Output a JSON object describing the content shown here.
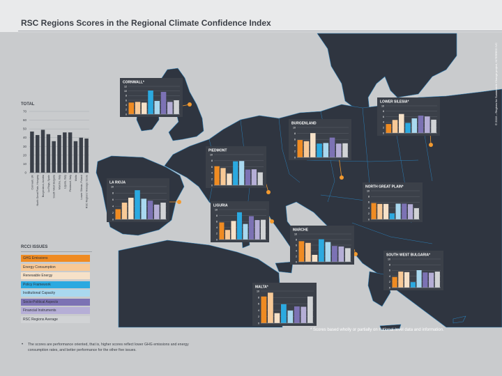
{
  "title": "RSC Regions Scores in the Regional Climate Confidence Index",
  "copyright": "© 2016 – Regions for Sustainable Change project, INTERREG IVC",
  "colors": [
    "#ef8b22",
    "#f8c996",
    "#f6e1c8",
    "#2ba9e0",
    "#a9d8ef",
    "#7c72b4",
    "#b5aed6",
    "#d1d3d5"
  ],
  "legend": {
    "heading": "RCCI ISSUES",
    "items": [
      "GHG Emissions",
      "Energy Consumption",
      "Renewable Energy",
      "Policy Framework",
      "Institutional Capacity",
      "Socio-Political Aspects",
      "Financial Instruments",
      "RSC Regions Average"
    ]
  },
  "footnote": "* Scores based wholly or partially on national-level data and information.",
  "note": "The scores are performance oriented, that is, higher scores reflect lower GHG emissions and energy consumption rates, and better performance for the other five issues.",
  "chart_data": [
    {
      "type": "bar",
      "title": "TOTAL",
      "categories": [
        "Cornwall, UK",
        "North Great Plain, Hungary",
        "Burgenland, Austria",
        "La Rioja, Spain",
        "South West Bulgaria",
        "Marche, Italy",
        "Liguria, Italy",
        "Piedmont, Italy",
        "Malta",
        "Lower Silesia, Poland",
        "RSC Regions' Average Score"
      ],
      "values": [
        47,
        43,
        49,
        44,
        36,
        43,
        46,
        46,
        36,
        40,
        39
      ],
      "yticks": [
        "0",
        "10",
        "20",
        "30",
        "40",
        "50",
        "60",
        "70"
      ],
      "ylim": [
        0,
        70
      ]
    },
    {
      "type": "bar",
      "title": "CORNWALL*",
      "yticks": [
        "0",
        "2",
        "4",
        "6",
        "8",
        "10",
        "12"
      ],
      "ylim": [
        0,
        12
      ],
      "values": [
        5,
        5.3,
        5,
        10.2,
        5.7,
        9.6,
        5.3,
        6
      ]
    },
    {
      "type": "bar",
      "title": "LOWER SILESIA*",
      "yticks": [
        "0",
        "2",
        "4",
        "6",
        "8",
        "10"
      ],
      "ylim": [
        0,
        10
      ],
      "values": [
        3.3,
        4.8,
        7,
        3.7,
        5.4,
        6.4,
        6.1,
        4.9
      ]
    },
    {
      "type": "bar",
      "title": "BURGENLAND",
      "yticks": [
        "0",
        "2",
        "4",
        "6",
        "8",
        "10"
      ],
      "ylim": [
        0,
        10
      ],
      "values": [
        5.8,
        5.4,
        8.1,
        4.6,
        4.8,
        6.6,
        4.6,
        4.7
      ]
    },
    {
      "type": "bar",
      "title": "PIEDMONT",
      "yticks": [
        "0",
        "2",
        "4",
        "6",
        "8",
        "10"
      ],
      "ylim": [
        0,
        10
      ],
      "values": [
        6.2,
        5.6,
        3.8,
        7.8,
        7.9,
        5.1,
        5.2,
        4.2
      ]
    },
    {
      "type": "bar",
      "title": "LA RIOJA",
      "yticks": [
        "0",
        "2",
        "4",
        "6",
        "8",
        "10"
      ],
      "ylim": [
        0,
        10
      ],
      "values": [
        3.1,
        5.1,
        6.6,
        8.9,
        6.3,
        5.7,
        4.5,
        5.1
      ]
    },
    {
      "type": "bar",
      "title": "NORTH GREAT PLAIN*",
      "yticks": [
        "0",
        "2",
        "4",
        "6",
        "8",
        "10"
      ],
      "ylim": [
        0,
        10
      ],
      "values": [
        5.7,
        5.4,
        5.4,
        2.1,
        5.5,
        5.5,
        5.3,
        3.9
      ]
    },
    {
      "type": "bar",
      "title": "LIGURIA",
      "yticks": [
        "0",
        "2",
        "4",
        "6",
        "8",
        "10"
      ],
      "ylim": [
        0,
        10
      ],
      "values": [
        5.7,
        3.2,
        6.2,
        9.1,
        5.2,
        7.8,
        6.5,
        6.6
      ]
    },
    {
      "type": "bar",
      "title": "MARCHE",
      "yticks": [
        "0",
        "2",
        "4",
        "6",
        "8",
        "10"
      ],
      "ylim": [
        0,
        10
      ],
      "values": [
        7.4,
        6.8,
        2.5,
        8.1,
        7.1,
        5.7,
        5.5,
        4.9
      ]
    },
    {
      "type": "bar",
      "title": "SOUTH WEST BULGARIA*",
      "yticks": [
        "0",
        "2",
        "4",
        "6",
        "8",
        "10"
      ],
      "ylim": [
        0,
        10
      ],
      "values": [
        3.7,
        5.6,
        5.4,
        1.9,
        6.1,
        5.3,
        5.2,
        5.6
      ]
    },
    {
      "type": "bar",
      "title": "MALTA*",
      "yticks": [
        "0",
        "2",
        "4",
        "6",
        "8",
        "10"
      ],
      "ylim": [
        0,
        10
      ],
      "values": [
        8.3,
        9.5,
        3.1,
        5.9,
        3.9,
        5.2,
        5.1,
        8.3
      ]
    }
  ]
}
